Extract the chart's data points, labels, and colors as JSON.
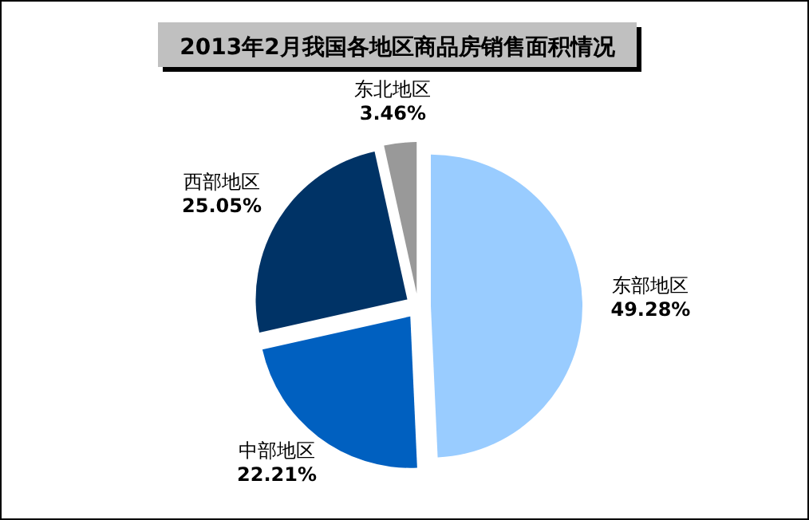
{
  "chart_data": {
    "type": "pie",
    "title": "2013年2月我国各地区商品房销售面积情况",
    "categories": [
      "东部地区",
      "中部地区",
      "西部地区",
      "东北地区"
    ],
    "values": [
      49.28,
      22.21,
      25.05,
      3.46
    ],
    "value_labels": [
      "49.28%",
      "22.21%",
      "25.05%",
      "3.46%"
    ],
    "colors": [
      "#99ccff",
      "#0060c0",
      "#003366",
      "#999999"
    ],
    "legend": false
  }
}
